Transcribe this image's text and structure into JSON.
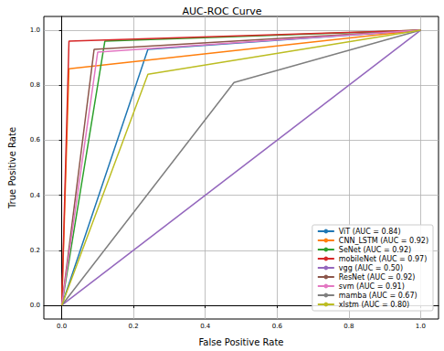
{
  "chart_data": {
    "type": "line",
    "title": "AUC-ROC Curve",
    "x_label": "False Positive Rate",
    "y_label": "True Positive Rate",
    "xlim": [
      -0.05,
      1.05
    ],
    "ylim": [
      -0.05,
      1.05
    ],
    "xticks": [
      {
        "value": 0,
        "label": "0.0"
      },
      0.2,
      0.4,
      0.6,
      0.8,
      {
        "value": 1,
        "label": "1.0"
      }
    ],
    "yticks": [
      {
        "value": 0,
        "label": "0.0"
      },
      0.2,
      0.4,
      0.6,
      0.8,
      {
        "value": 1,
        "label": "1.0"
      }
    ],
    "grid": true,
    "legend": "lower right",
    "series": [
      {
        "name": "ViT (AUC = 0.84)",
        "color": "#1f77b4",
        "x": [
          0,
          0.24,
          1
        ],
        "values": [
          0,
          0.93,
          1
        ]
      },
      {
        "name": "CNN_LSTM (AUC = 0.92)",
        "color": "#ff7f0e",
        "x": [
          0,
          0.02,
          1
        ],
        "values": [
          0,
          0.86,
          1
        ]
      },
      {
        "name": "SeNet (AUC = 0.92)",
        "color": "#2ca02c",
        "x": [
          0,
          0.12,
          1
        ],
        "values": [
          0,
          0.96,
          1
        ]
      },
      {
        "name": "mobileNet (AUC = 0.97)",
        "color": "#d62728",
        "x": [
          0,
          0.02,
          1
        ],
        "values": [
          0,
          0.96,
          1
        ]
      },
      {
        "name": "vgg (AUC = 0.50)",
        "color": "#9467bd",
        "x": [
          0,
          1
        ],
        "values": [
          0,
          1
        ]
      },
      {
        "name": "ResNet (AUC = 0.92)",
        "color": "#8c564b",
        "x": [
          0,
          0.09,
          1
        ],
        "values": [
          0,
          0.93,
          1
        ]
      },
      {
        "name": "svm (AUC = 0.91)",
        "color": "#e377c2",
        "x": [
          0,
          0.1,
          1
        ],
        "values": [
          0,
          0.92,
          1
        ]
      },
      {
        "name": "mamba (AUC = 0.67)",
        "color": "#7f7f7f",
        "x": [
          0,
          0.48,
          1
        ],
        "values": [
          0,
          0.81,
          1
        ]
      },
      {
        "name": "xlstm (AUC = 0.80)",
        "color": "#bcbd22",
        "x": [
          0,
          0.24,
          1
        ],
        "values": [
          0,
          0.84,
          1
        ]
      }
    ]
  }
}
